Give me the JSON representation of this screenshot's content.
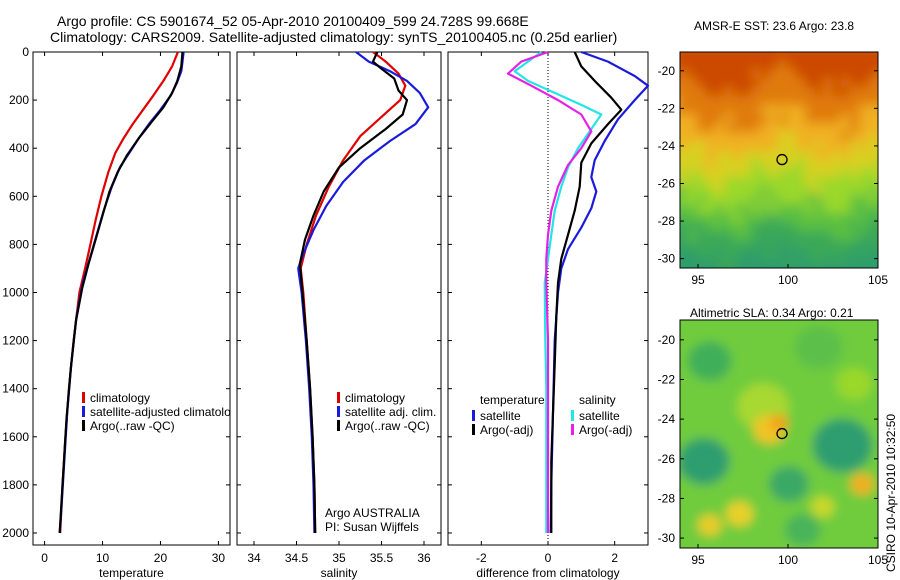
{
  "titles": {
    "line1": "Argo profile: CS 5901674_52 05-Apr-2010 20100409_599 24.728S 99.668E",
    "line2": "Climatology: CARS2009. Satellite-adjusted climatology: synTS_20100405.nc (0.25d earlier)",
    "sst_map": "AMSR-E SST: 23.6 Argo: 23.8",
    "sla_map": "Altimetric SLA: 0.34 Argo: 0.21",
    "side_stamp": "CSIRO 10-Apr-2010 10:32:50"
  },
  "colors": {
    "climatology": "#e00000",
    "satellite": "#1a1adc",
    "argo": "#000000",
    "salinity_sat": "#22e6e6",
    "salinity_argo": "#e620e6"
  },
  "chart_data": [
    {
      "type": "line",
      "xlabel": "temperature",
      "xlim": [
        -2,
        32
      ],
      "xticks": [
        0,
        10,
        20,
        30
      ],
      "ylim": [
        2050,
        0
      ],
      "yticks": [
        0,
        200,
        400,
        600,
        800,
        1000,
        1200,
        1400,
        1600,
        1800,
        2000
      ],
      "reversed_y": true,
      "legend": {
        "position": "lower-right",
        "entries": [
          "climatology",
          "satellite-adjusted climatolo",
          "Argo(..raw -QC)"
        ]
      },
      "series": [
        {
          "name": "climatology",
          "color": "#e00000",
          "points": [
            [
              23.0,
              0
            ],
            [
              22.0,
              60
            ],
            [
              20.5,
              120
            ],
            [
              18.8,
              180
            ],
            [
              17.0,
              240
            ],
            [
              15.2,
              300
            ],
            [
              13.6,
              360
            ],
            [
              12.2,
              420
            ],
            [
              11.0,
              500
            ],
            [
              9.8,
              600
            ],
            [
              8.8,
              700
            ],
            [
              7.9,
              800
            ],
            [
              7.0,
              900
            ],
            [
              6.0,
              1000
            ],
            [
              5.0,
              1200
            ],
            [
              4.2,
              1400
            ],
            [
              3.6,
              1600
            ],
            [
              3.1,
              1800
            ],
            [
              2.7,
              2000
            ]
          ]
        },
        {
          "name": "satellite-adjusted climatolo",
          "color": "#1a1adc",
          "points": [
            [
              24.0,
              0
            ],
            [
              23.8,
              40
            ],
            [
              23.6,
              80
            ],
            [
              22.8,
              130
            ],
            [
              21.8,
              180
            ],
            [
              20.0,
              240
            ],
            [
              18.0,
              300
            ],
            [
              16.2,
              360
            ],
            [
              14.6,
              420
            ],
            [
              13.0,
              480
            ],
            [
              11.6,
              560
            ],
            [
              10.2,
              660
            ],
            [
              9.0,
              760
            ],
            [
              7.8,
              860
            ],
            [
              6.6,
              960
            ],
            [
              5.5,
              1100
            ],
            [
              4.6,
              1300
            ],
            [
              3.9,
              1500
            ],
            [
              3.4,
              1700
            ],
            [
              2.9,
              1900
            ],
            [
              2.6,
              2000
            ]
          ]
        },
        {
          "name": "Argo(..raw -QC)",
          "color": "#000000",
          "points": [
            [
              23.8,
              0
            ],
            [
              23.6,
              60
            ],
            [
              22.9,
              120
            ],
            [
              22.0,
              170
            ],
            [
              20.5,
              230
            ],
            [
              18.5,
              290
            ],
            [
              16.2,
              360
            ],
            [
              14.2,
              430
            ],
            [
              12.6,
              500
            ],
            [
              11.2,
              580
            ],
            [
              10.0,
              680
            ],
            [
              8.8,
              780
            ],
            [
              7.6,
              880
            ],
            [
              6.5,
              980
            ],
            [
              5.4,
              1120
            ],
            [
              4.5,
              1320
            ],
            [
              3.8,
              1520
            ],
            [
              3.3,
              1720
            ],
            [
              2.8,
              1920
            ],
            [
              2.6,
              2000
            ]
          ]
        }
      ]
    },
    {
      "type": "line",
      "xlabel": "salinity",
      "xlim": [
        33.8,
        36.2
      ],
      "xticks": [
        34,
        34.5,
        35,
        35.5,
        36
      ],
      "ylim": [
        2050,
        0
      ],
      "reversed_y": true,
      "legend": {
        "position": "lower-right",
        "entries": [
          "climatology",
          "satellite adj. clim.",
          "Argo(..raw -QC)"
        ]
      },
      "annotation": [
        "Argo AUSTRALIA",
        "PI: Susan Wijffels"
      ],
      "series": [
        {
          "name": "climatology",
          "color": "#e00000",
          "points": [
            [
              35.4,
              0
            ],
            [
              35.55,
              40
            ],
            [
              35.7,
              90
            ],
            [
              35.78,
              140
            ],
            [
              35.72,
              200
            ],
            [
              35.5,
              270
            ],
            [
              35.25,
              350
            ],
            [
              35.05,
              450
            ],
            [
              34.88,
              560
            ],
            [
              34.73,
              680
            ],
            [
              34.62,
              800
            ],
            [
              34.55,
              900
            ],
            [
              34.58,
              1000
            ],
            [
              34.62,
              1200
            ],
            [
              34.66,
              1400
            ],
            [
              34.69,
              1600
            ],
            [
              34.71,
              1800
            ],
            [
              34.72,
              2000
            ]
          ]
        },
        {
          "name": "satellite adj. clim.",
          "color": "#1a1adc",
          "points": [
            [
              35.2,
              0
            ],
            [
              35.35,
              40
            ],
            [
              35.6,
              80
            ],
            [
              35.8,
              120
            ],
            [
              35.95,
              170
            ],
            [
              36.05,
              230
            ],
            [
              35.9,
              300
            ],
            [
              35.6,
              370
            ],
            [
              35.3,
              450
            ],
            [
              35.05,
              540
            ],
            [
              34.85,
              640
            ],
            [
              34.7,
              740
            ],
            [
              34.58,
              840
            ],
            [
              34.52,
              900
            ],
            [
              34.56,
              1000
            ],
            [
              34.61,
              1200
            ],
            [
              34.65,
              1400
            ],
            [
              34.68,
              1600
            ],
            [
              34.7,
              1800
            ],
            [
              34.71,
              2000
            ]
          ]
        },
        {
          "name": "Argo(..raw -QC)",
          "color": "#000000",
          "points": [
            [
              35.45,
              0
            ],
            [
              35.4,
              40
            ],
            [
              35.5,
              70
            ],
            [
              35.65,
              110
            ],
            [
              35.7,
              160
            ],
            [
              35.8,
              200
            ],
            [
              35.75,
              260
            ],
            [
              35.55,
              320
            ],
            [
              35.25,
              400
            ],
            [
              35.0,
              480
            ],
            [
              34.82,
              580
            ],
            [
              34.7,
              680
            ],
            [
              34.6,
              780
            ],
            [
              34.54,
              880
            ],
            [
              34.57,
              1000
            ],
            [
              34.62,
              1200
            ],
            [
              34.66,
              1400
            ],
            [
              34.69,
              1600
            ],
            [
              34.71,
              1800
            ],
            [
              34.72,
              2000
            ]
          ]
        }
      ]
    },
    {
      "type": "line",
      "xlabel": "difference from climatology",
      "xlim": [
        -3,
        3
      ],
      "xticks": [
        -2,
        0,
        2
      ],
      "ylim": [
        2050,
        0
      ],
      "reversed_y": true,
      "zero_line": true,
      "legend": {
        "position": "lower-right",
        "groups": [
          {
            "header": "temperature",
            "entries": [
              "satellite",
              "Argo(-adj)"
            ]
          },
          {
            "header": "salinity",
            "entries": [
              "satellite",
              "Argo(-adj)"
            ]
          }
        ]
      },
      "series": [
        {
          "name": "temperature satellite",
          "color": "#1a1adc",
          "points": [
            [
              1.0,
              0
            ],
            [
              1.8,
              40
            ],
            [
              2.2,
              70
            ],
            [
              2.6,
              100
            ],
            [
              3.0,
              140
            ],
            [
              2.6,
              200
            ],
            [
              2.1,
              280
            ],
            [
              1.7,
              370
            ],
            [
              1.4,
              450
            ],
            [
              1.3,
              520
            ],
            [
              1.45,
              580
            ],
            [
              1.3,
              650
            ],
            [
              1.0,
              730
            ],
            [
              0.6,
              820
            ],
            [
              0.4,
              900
            ],
            [
              0.3,
              1000
            ],
            [
              0.2,
              1200
            ],
            [
              0.15,
              1500
            ],
            [
              0.1,
              1800
            ],
            [
              0.08,
              2000
            ]
          ]
        },
        {
          "name": "temperature Argo(-adj)",
          "color": "#000000",
          "points": [
            [
              0.8,
              0
            ],
            [
              1.0,
              60
            ],
            [
              1.4,
              120
            ],
            [
              1.9,
              190
            ],
            [
              2.2,
              240
            ],
            [
              1.8,
              300
            ],
            [
              1.3,
              380
            ],
            [
              1.0,
              460
            ],
            [
              0.95,
              560
            ],
            [
              0.8,
              660
            ],
            [
              0.6,
              760
            ],
            [
              0.4,
              860
            ],
            [
              0.3,
              960
            ],
            [
              0.25,
              1100
            ],
            [
              0.2,
              1300
            ],
            [
              0.15,
              1500
            ],
            [
              0.1,
              1700
            ],
            [
              0.1,
              1900
            ],
            [
              0.1,
              2000
            ]
          ]
        },
        {
          "name": "salinity satellite",
          "color": "#22e6e6",
          "points": [
            [
              -0.2,
              0
            ],
            [
              -0.6,
              40
            ],
            [
              -1.0,
              80
            ],
            [
              -0.6,
              120
            ],
            [
              0.2,
              170
            ],
            [
              1.0,
              220
            ],
            [
              1.6,
              260
            ],
            [
              1.3,
              320
            ],
            [
              0.9,
              400
            ],
            [
              0.6,
              480
            ],
            [
              0.4,
              560
            ],
            [
              0.2,
              660
            ],
            [
              0.1,
              760
            ],
            [
              0.0,
              860
            ],
            [
              -0.1,
              960
            ],
            [
              -0.08,
              1200
            ],
            [
              -0.05,
              1400
            ],
            [
              -0.05,
              1600
            ],
            [
              -0.05,
              1800
            ],
            [
              -0.05,
              2000
            ]
          ]
        },
        {
          "name": "salinity Argo(-adj)",
          "color": "#e620e6",
          "points": [
            [
              0.0,
              0
            ],
            [
              -0.8,
              40
            ],
            [
              -1.2,
              90
            ],
            [
              -0.5,
              140
            ],
            [
              0.3,
              200
            ],
            [
              1.0,
              260
            ],
            [
              1.3,
              330
            ],
            [
              1.0,
              400
            ],
            [
              0.6,
              470
            ],
            [
              0.3,
              560
            ],
            [
              0.1,
              660
            ],
            [
              0.0,
              760
            ],
            [
              -0.05,
              860
            ],
            [
              -0.05,
              960
            ],
            [
              0.0,
              1200
            ],
            [
              0.0,
              1400
            ],
            [
              0.0,
              1600
            ],
            [
              0.0,
              1800
            ],
            [
              0.0,
              2000
            ]
          ]
        }
      ]
    },
    {
      "type": "heatmap",
      "title": "AMSR-E SST: 23.6 Argo: 23.8",
      "xlim": [
        94,
        105
      ],
      "xticks": [
        95,
        100,
        105
      ],
      "ylim": [
        -30.5,
        -19
      ],
      "yticks": [
        -20,
        -22,
        -24,
        -26,
        -28,
        -30
      ],
      "marker": {
        "lon": 99.668,
        "lat": -24.728
      }
    },
    {
      "type": "heatmap",
      "title": "Altimetric SLA: 0.34 Argo: 0.21",
      "xlim": [
        94,
        105
      ],
      "xticks": [
        95,
        100,
        105
      ],
      "ylim": [
        -30.5,
        -19
      ],
      "yticks": [
        -20,
        -22,
        -24,
        -26,
        -28,
        -30
      ],
      "marker": {
        "lon": 99.668,
        "lat": -24.728
      }
    }
  ]
}
